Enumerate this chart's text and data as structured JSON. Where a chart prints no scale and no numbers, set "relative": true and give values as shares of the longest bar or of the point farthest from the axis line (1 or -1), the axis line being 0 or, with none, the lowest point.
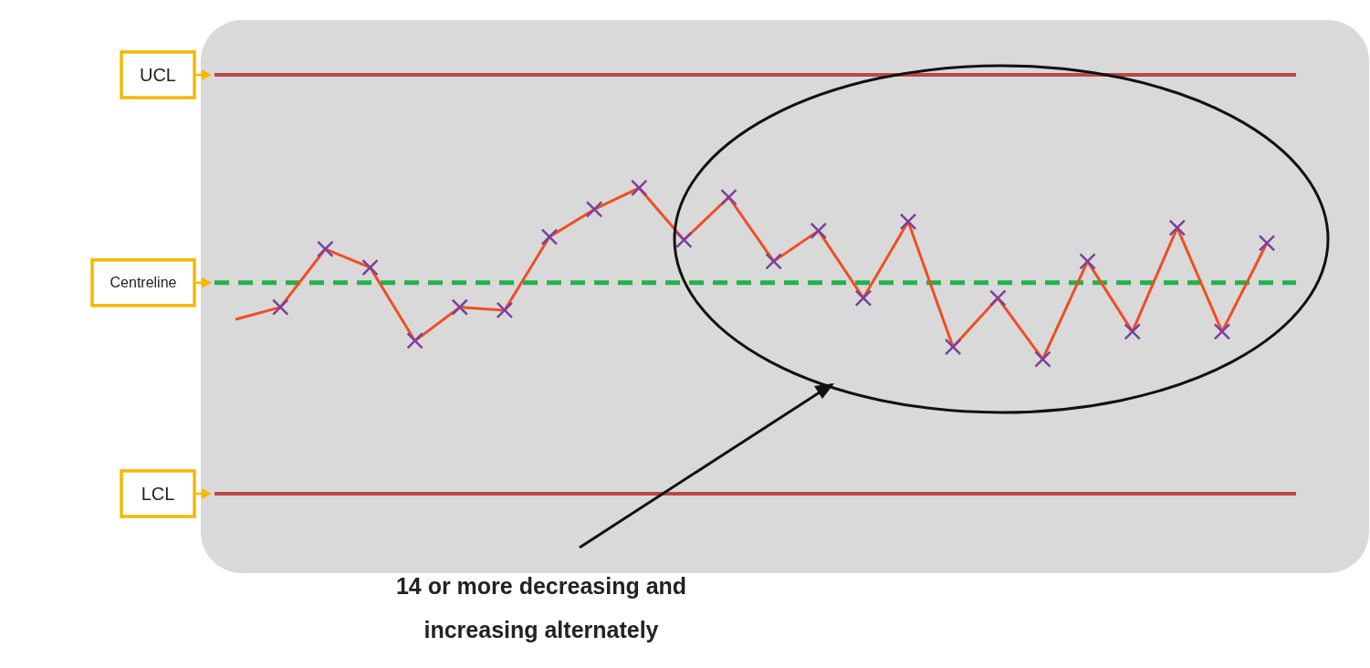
{
  "chart_data": {
    "type": "line",
    "relative": true,
    "categories": [
      null,
      null,
      null,
      null,
      null,
      null,
      null,
      null,
      null,
      null,
      null,
      null,
      null,
      null,
      null,
      null,
      null,
      null,
      null,
      null,
      null,
      null,
      null,
      null
    ],
    "series": [
      {
        "color": "#f04e23",
        "values": [
          0.57,
          0.61,
          0.8,
          0.74,
          0.5,
          0.61,
          0.6,
          0.84,
          0.93,
          1,
          0.83,
          0.97,
          0.76,
          0.86,
          0.64,
          0.89,
          0.48,
          0.64,
          0.44,
          0.76,
          0.53,
          0.87,
          0.53,
          0.82
        ],
        "colors": [
          null,
          "#7b3f9e",
          "#7b3f9e",
          "#7b3f9e",
          "#7b3f9e",
          "#7b3f9e",
          "#7b3f9e",
          "#7b3f9e",
          "#7b3f9e",
          "#7b3f9e",
          "#7b3f9e",
          "#7b3f9e",
          "#7b3f9e",
          "#7b3f9e",
          "#7b3f9e",
          "#7b3f9e",
          "#7b3f9e",
          "#7b3f9e",
          "#7b3f9e",
          "#7b3f9e",
          "#7b3f9e",
          "#7b3f9e",
          "#7b3f9e",
          "#7b3f9e"
        ]
      }
    ],
    "marker": "cross",
    "ref_lines": [
      {
        "axis": "y",
        "value": 1.37,
        "label": "UCL",
        "color": "#b94a48"
      },
      {
        "axis": "y",
        "value": 0.69,
        "label": "Centreline",
        "color": "#22b14c",
        "line_style": "dashed"
      },
      {
        "axis": "y",
        "value": 0,
        "label": "LCL",
        "color": "#b94a48"
      }
    ],
    "annotations": [
      "14 or more decreasing and increasing alternately"
    ]
  }
}
